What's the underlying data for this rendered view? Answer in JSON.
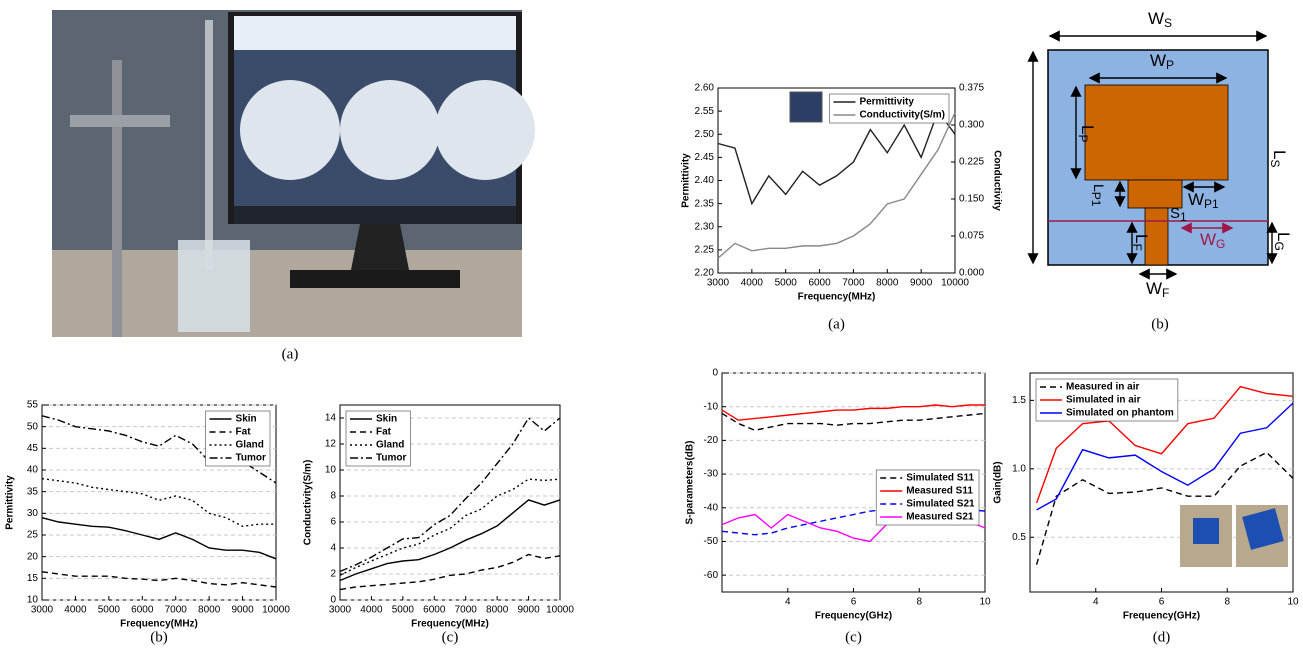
{
  "photo": {
    "caption": "(a)"
  },
  "diagram": {
    "caption": "(b)",
    "labels": [
      {
        "main": "W",
        "sub": "S"
      },
      {
        "main": "W",
        "sub": "P"
      },
      {
        "main": "L",
        "sub": "S"
      },
      {
        "main": "L",
        "sub": "P"
      },
      {
        "main": "L",
        "sub": "P1"
      },
      {
        "main": "W",
        "sub": "P1"
      },
      {
        "main": "S",
        "sub": "1"
      },
      {
        "main": "W",
        "sub": "G"
      },
      {
        "main": "L",
        "sub": "G"
      },
      {
        "main": "L",
        "sub": "F"
      },
      {
        "main": "W",
        "sub": "F"
      }
    ]
  },
  "chart_data": [
    {
      "type": "line",
      "caption": "(b)",
      "xlabel": "Frequency(MHz)",
      "ylabel": "Permittivity",
      "grid": true,
      "legend": "upper right",
      "xlim": [
        3000,
        10000
      ],
      "xticks": [
        3000,
        4000,
        5000,
        6000,
        7000,
        8000,
        9000,
        10000
      ],
      "ylim": [
        10,
        55
      ],
      "yticks": [
        10,
        15,
        20,
        25,
        30,
        35,
        40,
        45,
        50,
        55
      ],
      "x": [
        3000,
        3500,
        4000,
        4500,
        5000,
        5500,
        6000,
        6500,
        7000,
        7500,
        8000,
        8500,
        9000,
        9500,
        10000
      ],
      "series": [
        {
          "name": "Skin",
          "color": "#000000",
          "style": "solid",
          "values": [
            29,
            28,
            27.5,
            27,
            26.8,
            26,
            25,
            24,
            25.5,
            24,
            22,
            21.5,
            21.5,
            21,
            19.5
          ]
        },
        {
          "name": "Fat",
          "color": "#000000",
          "style": "dashed",
          "values": [
            16.5,
            16,
            15.5,
            15.5,
            15.5,
            15,
            14.8,
            14.5,
            15,
            14.5,
            13.8,
            13.5,
            14,
            13.5,
            13
          ]
        },
        {
          "name": "Gland",
          "color": "#000000",
          "style": "dotted",
          "values": [
            38,
            37.5,
            37,
            36,
            35.5,
            35,
            34.5,
            33,
            34,
            33,
            30,
            29,
            27,
            27.5,
            27.5
          ]
        },
        {
          "name": "Tumor",
          "color": "#000000",
          "style": "dashdot",
          "values": [
            52.5,
            51.5,
            50,
            49.5,
            49,
            48,
            46.5,
            45.5,
            48,
            46,
            42,
            41,
            42,
            39.5,
            37
          ]
        }
      ]
    },
    {
      "type": "line",
      "caption": "(c)",
      "xlabel": "Frequency(MHz)",
      "ylabel": "Conductivity(S/m)",
      "grid": true,
      "legend": "upper left",
      "xlim": [
        3000,
        10000
      ],
      "xticks": [
        3000,
        4000,
        5000,
        6000,
        7000,
        8000,
        9000,
        10000
      ],
      "ylim": [
        0,
        15
      ],
      "yticks": [
        0,
        2,
        4,
        6,
        8,
        10,
        12,
        14
      ],
      "x": [
        3000,
        3500,
        4000,
        4500,
        5000,
        5500,
        6000,
        6500,
        7000,
        7500,
        8000,
        8500,
        9000,
        9500,
        10000
      ],
      "series": [
        {
          "name": "Skin",
          "color": "#000000",
          "style": "solid",
          "values": [
            1.5,
            2,
            2.4,
            2.8,
            3,
            3.1,
            3.5,
            4,
            4.6,
            5.1,
            5.7,
            6.7,
            7.7,
            7.3,
            7.7
          ]
        },
        {
          "name": "Fat",
          "color": "#000000",
          "style": "dashed",
          "values": [
            0.8,
            1,
            1.1,
            1.2,
            1.3,
            1.4,
            1.6,
            1.9,
            2,
            2.3,
            2.5,
            2.9,
            3.5,
            3.2,
            3.4
          ]
        },
        {
          "name": "Gland",
          "color": "#000000",
          "style": "dotted",
          "values": [
            1.9,
            2.5,
            3,
            3.5,
            4,
            4.3,
            5,
            5.5,
            6.5,
            7,
            8,
            8.5,
            9.3,
            9.2,
            9.3
          ]
        },
        {
          "name": "Tumor",
          "color": "#000000",
          "style": "dashdot",
          "values": [
            2.2,
            2.7,
            3.3,
            4,
            4.7,
            4.8,
            5.8,
            6.5,
            7.8,
            9,
            10.5,
            12,
            14,
            13,
            14
          ]
        }
      ]
    },
    {
      "type": "line",
      "caption": "(a)",
      "xlabel": "Frequency(MHz)",
      "ylabel": "Permittivity",
      "y2label": "Conductivity",
      "grid": false,
      "legend": "upper right",
      "xlim": [
        3000,
        10000
      ],
      "xticks": [
        3000,
        4000,
        5000,
        6000,
        7000,
        8000,
        9000,
        10000
      ],
      "ylim": [
        2.2,
        2.6
      ],
      "yticks": [
        {
          "value": 2.2,
          "label": "2.20"
        },
        2.25,
        {
          "value": 2.3,
          "label": "2.30"
        },
        2.35,
        {
          "value": 2.4,
          "label": "2.40"
        },
        2.45,
        {
          "value": 2.5,
          "label": "2.50"
        },
        2.55,
        {
          "value": 2.6,
          "label": "2.60"
        }
      ],
      "y2lim": [
        0,
        0.375
      ],
      "y2ticks": [
        {
          "value": 0,
          "label": "0.000"
        },
        0.075,
        {
          "value": 0.15,
          "label": "0.150"
        },
        0.225,
        {
          "value": 0.3,
          "label": "0.300"
        },
        0.375
      ],
      "x": [
        3000,
        3500,
        4000,
        4500,
        5000,
        5500,
        6000,
        6500,
        7000,
        7500,
        8000,
        8500,
        9000,
        9500,
        10000
      ],
      "series": [
        {
          "name": "Permittivity",
          "color": "#222222",
          "style": "solid",
          "values": [
            2.48,
            2.47,
            2.35,
            2.41,
            2.37,
            2.42,
            2.39,
            2.41,
            2.44,
            2.51,
            2.46,
            2.52,
            2.45,
            2.55,
            2.5
          ]
        },
        {
          "name": "Conductivity(S/m)",
          "color": "#888888",
          "style": "solid",
          "axis": "y2",
          "values": [
            0.03,
            0.06,
            0.045,
            0.05,
            0.05,
            0.055,
            0.055,
            0.06,
            0.075,
            0.1,
            0.14,
            0.15,
            0.2,
            0.25,
            0.325
          ]
        }
      ]
    },
    {
      "type": "line",
      "caption": "(c)",
      "xlabel": "Frequency(GHz)",
      "ylabel": "S-parameters(dB)",
      "grid": true,
      "legend": "center right",
      "xlim": [
        2,
        10
      ],
      "xticks": [
        4,
        6,
        8,
        10
      ],
      "ylim": [
        -65,
        0
      ],
      "yticks": [
        0,
        -10,
        -20,
        -30,
        -40,
        -50,
        -60
      ],
      "x": [
        2,
        2.5,
        3,
        3.5,
        4,
        4.5,
        5,
        5.5,
        6,
        6.5,
        7,
        7.5,
        8,
        8.5,
        9,
        9.5,
        10
      ],
      "series": [
        {
          "name": "Simulated S11",
          "color": "#000000",
          "style": "dashed",
          "values": [
            -12,
            -15,
            -17,
            -16,
            -15,
            -15,
            -15,
            -15.5,
            -15,
            -15,
            -14.5,
            -14,
            -14,
            -13.5,
            -13,
            -12.5,
            -12
          ]
        },
        {
          "name": "Measured S11",
          "color": "#ff0000",
          "style": "solid",
          "values": [
            -11,
            -14,
            -13.5,
            -13,
            -12.5,
            -12,
            -11.5,
            -11,
            -11,
            -10.5,
            -10.5,
            -10,
            -10,
            -9.5,
            -10,
            -9.5,
            -9.5
          ]
        },
        {
          "name": "Simulated S21",
          "color": "#0000ff",
          "style": "dashed",
          "values": [
            -47,
            -47.5,
            -48,
            -47.5,
            -46,
            -45,
            -44,
            -43,
            -42,
            -41,
            -40.5,
            -40,
            -39.5,
            -39.5,
            -40,
            -40.5,
            -41
          ]
        },
        {
          "name": "Measured S21",
          "color": "#ff00ff",
          "style": "solid",
          "values": [
            -45,
            -43,
            -42,
            -46,
            -42,
            -44,
            -46,
            -47,
            -49,
            -50,
            -45,
            -40,
            -40,
            -42,
            -45,
            -44,
            -46
          ]
        }
      ]
    },
    {
      "type": "line",
      "caption": "(d)",
      "xlabel": "Frequency(GHz)",
      "ylabel": "Gain(dB)",
      "grid": true,
      "legend": "upper left",
      "xlim": [
        2,
        10
      ],
      "xticks": [
        4,
        6,
        8,
        10
      ],
      "ylim": [
        0.1,
        1.7
      ],
      "yticks": [
        0.5,
        {
          "value": 1,
          "label": "1.0"
        },
        1.5
      ],
      "x": [
        2.2,
        2.8,
        3.6,
        4.4,
        5.2,
        6,
        6.8,
        7.6,
        8.4,
        9.2,
        10
      ],
      "series": [
        {
          "name": "Measured in air",
          "color": "#000000",
          "style": "dashed",
          "values": [
            0.3,
            0.8,
            0.92,
            0.82,
            0.83,
            0.86,
            0.8,
            0.8,
            1.02,
            1.12,
            0.93
          ]
        },
        {
          "name": "Simulated in air",
          "color": "#ff0000",
          "style": "solid",
          "values": [
            0.75,
            1.15,
            1.33,
            1.35,
            1.17,
            1.11,
            1.33,
            1.37,
            1.6,
            1.55,
            1.53
          ]
        },
        {
          "name": "Simulated on phantom",
          "color": "#0000ff",
          "style": "solid",
          "values": [
            0.7,
            0.78,
            1.14,
            1.08,
            1.1,
            0.98,
            0.88,
            1.0,
            1.26,
            1.3,
            1.48
          ]
        }
      ]
    }
  ]
}
